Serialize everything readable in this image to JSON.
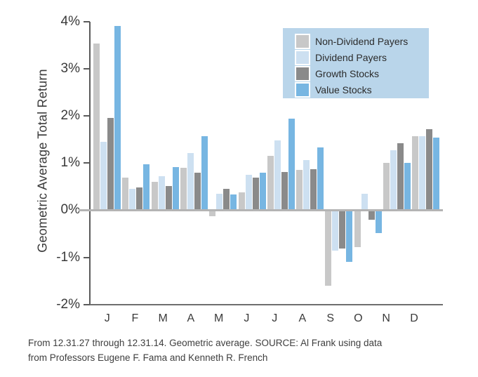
{
  "figure": {
    "y_axis_title": "Geometric Average Total Return",
    "caption_line1": "From 12.31.27 through 12.31.14. Geometric average. SOURCE: Al Frank using data",
    "caption_line2": "from Professors Eugene F. Fama and Kenneth R. French"
  },
  "legend": {
    "background": "#b9d5ea",
    "items": [
      {
        "label": "Non-Dividend Payers",
        "color": "#c8c8c8"
      },
      {
        "label": "Dividend Payers",
        "color": "#cde0f1"
      },
      {
        "label": "Growth Stocks",
        "color": "#8a8a8a"
      },
      {
        "label": "Value Stocks",
        "color": "#77b6e2"
      }
    ]
  },
  "chart_data": {
    "type": "bar",
    "title": "",
    "xlabel": "",
    "ylabel": "Geometric Average Total Return",
    "ylim": [
      -2,
      4
    ],
    "grid": false,
    "legend_position": "top-right",
    "yticks": [
      "4%",
      "3%",
      "2%",
      "1%",
      "0%",
      "-1%",
      "-2%"
    ],
    "categories": [
      "J",
      "F",
      "M",
      "A",
      "M",
      "J",
      "J",
      "A",
      "S",
      "O",
      "N",
      "D"
    ],
    "series": [
      {
        "name": "Non-Dividend Payers",
        "color": "#c8c8c8",
        "values": [
          3.54,
          0.7,
          0.6,
          0.9,
          -0.12,
          0.38,
          1.15,
          0.86,
          -1.6,
          -0.78,
          1.0,
          1.57
        ]
      },
      {
        "name": "Dividend Payers",
        "color": "#cde0f1",
        "values": [
          1.45,
          0.46,
          0.73,
          1.21,
          0.35,
          0.75,
          1.48,
          1.06,
          -0.85,
          0.35,
          1.27,
          1.57
        ]
      },
      {
        "name": "Growth Stocks",
        "color": "#8a8a8a",
        "values": [
          1.96,
          0.48,
          0.52,
          0.8,
          0.46,
          0.7,
          0.81,
          0.87,
          -0.8,
          -0.19,
          1.43,
          1.72
        ]
      },
      {
        "name": "Value Stocks",
        "color": "#77b6e2",
        "values": [
          3.91,
          0.97,
          0.92,
          1.58,
          0.33,
          0.8,
          1.95,
          1.33,
          -1.08,
          -0.48,
          1.0,
          1.55
        ]
      }
    ]
  }
}
